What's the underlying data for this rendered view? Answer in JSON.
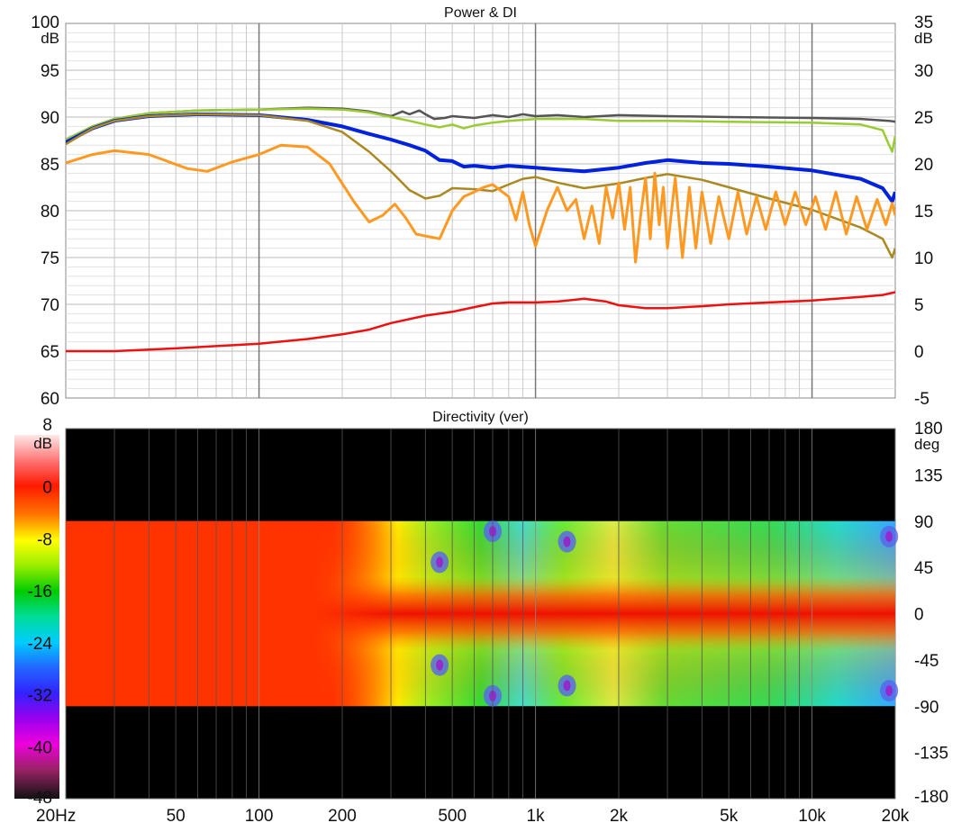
{
  "chart_data": [
    {
      "type": "line",
      "title": "Power & DI",
      "x_scale": "log",
      "xlim": [
        20,
        20000
      ],
      "ylim_left": [
        60,
        100
      ],
      "ylim_right": [
        -5,
        35
      ],
      "left_unit": "dB",
      "right_unit": "dB",
      "left_ticks": [
        60,
        65,
        70,
        75,
        80,
        85,
        90,
        95,
        100
      ],
      "right_ticks": [
        -5,
        0,
        5,
        10,
        15,
        20,
        25,
        30,
        35
      ],
      "grid": true,
      "series": [
        {
          "color": "#555555",
          "axis": "left",
          "points": [
            [
              20,
              87.6
            ],
            [
              25,
              89.0
            ],
            [
              30,
              89.8
            ],
            [
              40,
              90.4
            ],
            [
              60,
              90.7
            ],
            [
              100,
              90.8
            ],
            [
              150,
              91.0
            ],
            [
              200,
              90.9
            ],
            [
              250,
              90.6
            ],
            [
              300,
              90.1
            ],
            [
              330,
              90.6
            ],
            [
              350,
              90.3
            ],
            [
              380,
              90.7
            ],
            [
              400,
              90.3
            ],
            [
              430,
              89.8
            ],
            [
              470,
              89.9
            ],
            [
              500,
              90.1
            ],
            [
              600,
              89.9
            ],
            [
              700,
              90.2
            ],
            [
              800,
              90.0
            ],
            [
              900,
              90.3
            ],
            [
              1000,
              90.1
            ],
            [
              1200,
              90.2
            ],
            [
              1500,
              90.0
            ],
            [
              2000,
              90.2
            ],
            [
              3000,
              90.1
            ],
            [
              5000,
              90.0
            ],
            [
              10000,
              89.9
            ],
            [
              15000,
              89.8
            ],
            [
              19000,
              89.6
            ],
            [
              20000,
              89.5
            ]
          ]
        },
        {
          "color": "#99cc33",
          "axis": "left",
          "points": [
            [
              20,
              87.6
            ],
            [
              25,
              89.0
            ],
            [
              30,
              89.8
            ],
            [
              40,
              90.4
            ],
            [
              60,
              90.7
            ],
            [
              100,
              90.8
            ],
            [
              150,
              90.9
            ],
            [
              200,
              90.8
            ],
            [
              250,
              90.5
            ],
            [
              300,
              90.0
            ],
            [
              350,
              89.6
            ],
            [
              400,
              89.2
            ],
            [
              450,
              88.9
            ],
            [
              500,
              89.2
            ],
            [
              550,
              88.8
            ],
            [
              600,
              89.1
            ],
            [
              700,
              89.4
            ],
            [
              800,
              89.6
            ],
            [
              1000,
              89.8
            ],
            [
              1500,
              89.8
            ],
            [
              2000,
              89.6
            ],
            [
              3000,
              89.6
            ],
            [
              5000,
              89.5
            ],
            [
              10000,
              89.4
            ],
            [
              15000,
              89.2
            ],
            [
              18000,
              88.6
            ],
            [
              19000,
              87.0
            ],
            [
              19500,
              86.3
            ],
            [
              20000,
              88.0
            ]
          ]
        },
        {
          "color": "#0022dd",
          "axis": "left",
          "points": [
            [
              20,
              87.3
            ],
            [
              25,
              88.8
            ],
            [
              30,
              89.6
            ],
            [
              40,
              90.1
            ],
            [
              60,
              90.3
            ],
            [
              100,
              90.2
            ],
            [
              150,
              89.7
            ],
            [
              200,
              89.0
            ],
            [
              250,
              88.2
            ],
            [
              300,
              87.6
            ],
            [
              350,
              87.0
            ],
            [
              400,
              86.4
            ],
            [
              450,
              85.4
            ],
            [
              500,
              85.3
            ],
            [
              550,
              84.7
            ],
            [
              600,
              84.8
            ],
            [
              700,
              84.6
            ],
            [
              800,
              84.8
            ],
            [
              1000,
              84.6
            ],
            [
              1200,
              84.4
            ],
            [
              1500,
              84.2
            ],
            [
              2000,
              84.6
            ],
            [
              2500,
              85.1
            ],
            [
              3000,
              85.4
            ],
            [
              4000,
              85.1
            ],
            [
              5000,
              85.0
            ],
            [
              7000,
              84.7
            ],
            [
              10000,
              84.3
            ],
            [
              15000,
              83.4
            ],
            [
              18000,
              82.4
            ],
            [
              19500,
              81.0
            ],
            [
              20000,
              82.0
            ]
          ]
        },
        {
          "color": "#aa8822",
          "axis": "right",
          "points": [
            [
              20,
              22.1
            ],
            [
              25,
              23.8
            ],
            [
              30,
              24.6
            ],
            [
              40,
              25.1
            ],
            [
              60,
              25.3
            ],
            [
              100,
              25.2
            ],
            [
              150,
              24.6
            ],
            [
              200,
              23.4
            ],
            [
              250,
              21.3
            ],
            [
              300,
              19.2
            ],
            [
              350,
              17.2
            ],
            [
              400,
              16.3
            ],
            [
              450,
              16.6
            ],
            [
              500,
              17.4
            ],
            [
              600,
              17.3
            ],
            [
              700,
              17.1
            ],
            [
              800,
              17.8
            ],
            [
              900,
              18.4
            ],
            [
              1000,
              18.6
            ],
            [
              1200,
              18.0
            ],
            [
              1500,
              17.4
            ],
            [
              2000,
              17.9
            ],
            [
              2500,
              18.5
            ],
            [
              3000,
              18.9
            ],
            [
              4000,
              18.3
            ],
            [
              5000,
              17.5
            ],
            [
              7000,
              16.3
            ],
            [
              10000,
              15.1
            ],
            [
              15000,
              13.2
            ],
            [
              18000,
              12.0
            ],
            [
              19500,
              10.0
            ],
            [
              20000,
              11.0
            ]
          ]
        },
        {
          "color": "#ff9922",
          "axis": "right",
          "points": [
            [
              20,
              20.1
            ],
            [
              25,
              21.0
            ],
            [
              30,
              21.4
            ],
            [
              40,
              21.0
            ],
            [
              55,
              19.5
            ],
            [
              65,
              19.2
            ],
            [
              80,
              20.2
            ],
            [
              100,
              21.0
            ],
            [
              120,
              22.0
            ],
            [
              150,
              21.8
            ],
            [
              180,
              20.0
            ],
            [
              220,
              16.0
            ],
            [
              250,
              13.8
            ],
            [
              280,
              14.5
            ],
            [
              310,
              15.7
            ],
            [
              340,
              14.2
            ],
            [
              370,
              12.5
            ],
            [
              400,
              12.3
            ],
            [
              450,
              12.0
            ],
            [
              500,
              15.0
            ],
            [
              550,
              16.5
            ],
            [
              600,
              17.0
            ],
            [
              650,
              17.5
            ],
            [
              700,
              17.8
            ],
            [
              800,
              16.5
            ],
            [
              850,
              14.0
            ],
            [
              900,
              17.0
            ],
            [
              950,
              13.5
            ],
            [
              1000,
              11.2
            ],
            [
              1100,
              15.0
            ],
            [
              1200,
              17.5
            ],
            [
              1300,
              15.0
            ],
            [
              1400,
              16.2
            ],
            [
              1500,
              12.0
            ],
            [
              1600,
              15.5
            ],
            [
              1700,
              11.5
            ],
            [
              1800,
              17.5
            ],
            [
              1900,
              14.2
            ],
            [
              2000,
              18.0
            ],
            [
              2100,
              13.0
            ],
            [
              2200,
              17.5
            ],
            [
              2300,
              9.5
            ],
            [
              2400,
              14.5
            ],
            [
              2500,
              18.5
            ],
            [
              2600,
              12.0
            ],
            [
              2700,
              19.0
            ],
            [
              2800,
              13.5
            ],
            [
              2900,
              17.5
            ],
            [
              3000,
              11.0
            ],
            [
              3200,
              18.5
            ],
            [
              3400,
              10.0
            ],
            [
              3600,
              17.5
            ],
            [
              3800,
              11.0
            ],
            [
              4000,
              17.0
            ],
            [
              4300,
              11.5
            ],
            [
              4600,
              16.5
            ],
            [
              5000,
              12.0
            ],
            [
              5400,
              17.0
            ],
            [
              5800,
              12.5
            ],
            [
              6300,
              16.5
            ],
            [
              6800,
              13.0
            ],
            [
              7400,
              17.0
            ],
            [
              8000,
              13.5
            ],
            [
              8700,
              17.0
            ],
            [
              9500,
              13.5
            ],
            [
              10300,
              16.5
            ],
            [
              11200,
              13.0
            ],
            [
              12200,
              17.0
            ],
            [
              13300,
              12.5
            ],
            [
              14500,
              16.5
            ],
            [
              15800,
              13.0
            ],
            [
              17200,
              16.2
            ],
            [
              18500,
              13.5
            ],
            [
              19500,
              15.8
            ],
            [
              20000,
              14.5
            ]
          ]
        },
        {
          "color": "#ee1111",
          "axis": "right",
          "points": [
            [
              20,
              0.0
            ],
            [
              30,
              0.0
            ],
            [
              50,
              0.3
            ],
            [
              100,
              0.8
            ],
            [
              150,
              1.3
            ],
            [
              200,
              1.8
            ],
            [
              250,
              2.3
            ],
            [
              300,
              3.0
            ],
            [
              400,
              3.8
            ],
            [
              500,
              4.2
            ],
            [
              600,
              4.7
            ],
            [
              700,
              5.1
            ],
            [
              800,
              5.2
            ],
            [
              1000,
              5.2
            ],
            [
              1200,
              5.3
            ],
            [
              1500,
              5.6
            ],
            [
              1800,
              5.3
            ],
            [
              2000,
              4.9
            ],
            [
              2500,
              4.6
            ],
            [
              3000,
              4.6
            ],
            [
              4000,
              4.8
            ],
            [
              5000,
              5.0
            ],
            [
              7000,
              5.2
            ],
            [
              10000,
              5.4
            ],
            [
              15000,
              5.8
            ],
            [
              18000,
              6.0
            ],
            [
              20000,
              6.3
            ]
          ]
        }
      ]
    },
    {
      "type": "heatmap",
      "title": "Directivity (ver)",
      "x_scale": "log",
      "xlim": [
        20,
        20000
      ],
      "ylim": [
        -180,
        180
      ],
      "y_unit": "deg",
      "y_ticks": [
        180,
        135,
        90,
        45,
        0,
        -45,
        -90,
        -135,
        -180
      ],
      "x_tick_labels": [
        "20Hz",
        "50",
        "100",
        "200",
        "500",
        "1k",
        "2k",
        "5k",
        "10k",
        "20k"
      ],
      "x_tick_values": [
        20,
        50,
        100,
        200,
        500,
        1000,
        2000,
        5000,
        10000,
        20000
      ],
      "colorbar_unit": "dB",
      "colorbar_range": [
        -48,
        8
      ],
      "colorbar_ticks": [
        "8",
        "0",
        "-8",
        "-16",
        "-24",
        "-32",
        "-40",
        "-48"
      ],
      "measured_angle_range": [
        -90,
        90
      ]
    }
  ]
}
